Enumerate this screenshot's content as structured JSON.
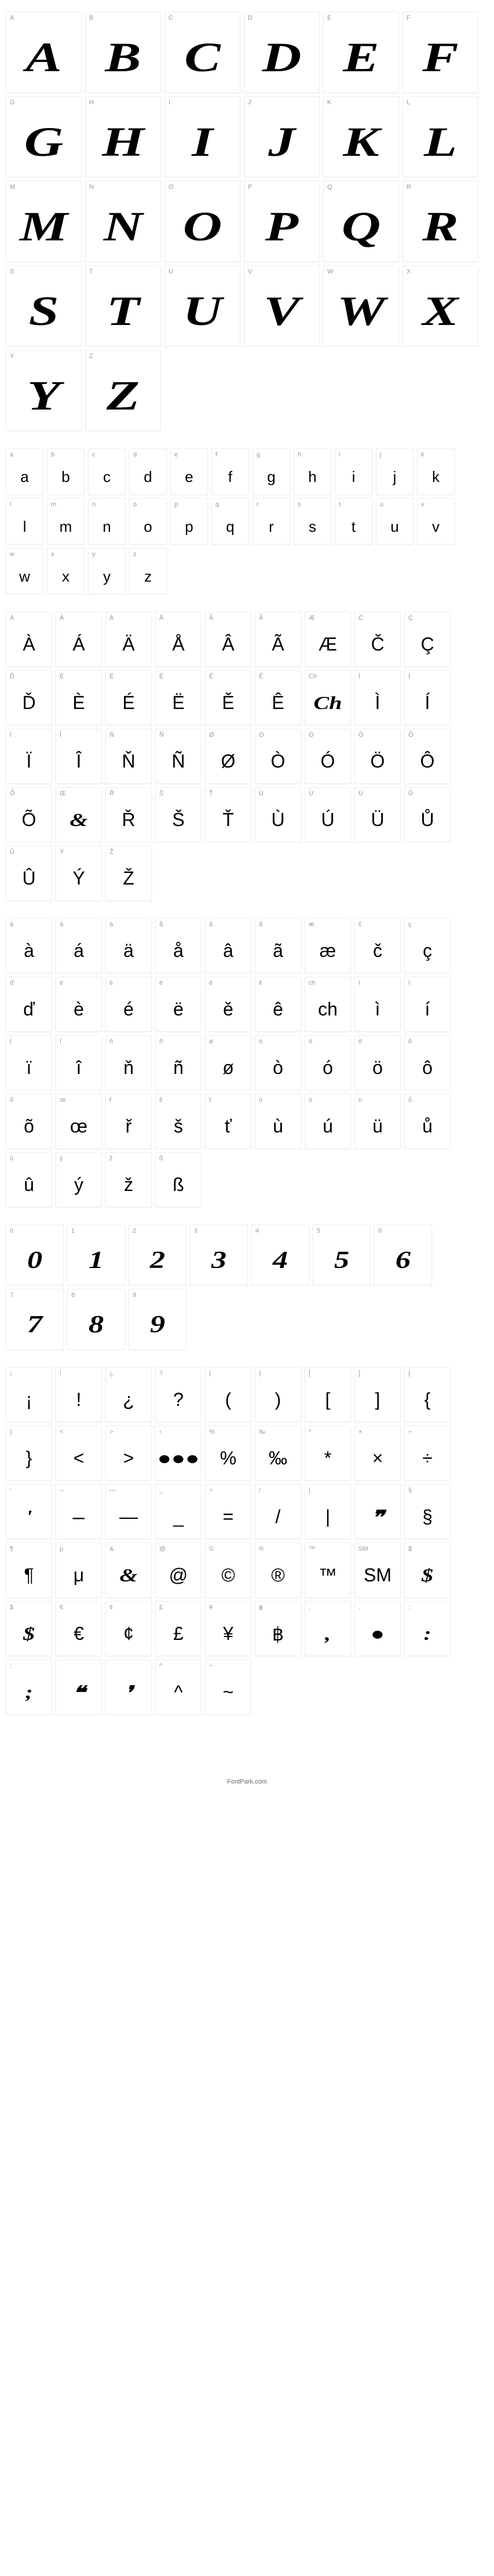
{
  "uppercase": {
    "cols": "w6",
    "cells": [
      {
        "label": "A",
        "glyph": "A"
      },
      {
        "label": "B",
        "glyph": "B"
      },
      {
        "label": "C",
        "glyph": "C"
      },
      {
        "label": "D",
        "glyph": "D"
      },
      {
        "label": "E",
        "glyph": "E"
      },
      {
        "label": "F",
        "glyph": "F"
      },
      {
        "label": "G",
        "glyph": "G"
      },
      {
        "label": "H",
        "glyph": "H"
      },
      {
        "label": "I",
        "glyph": "I"
      },
      {
        "label": "J",
        "glyph": "J"
      },
      {
        "label": "K",
        "glyph": "K"
      },
      {
        "label": "L",
        "glyph": "L"
      },
      {
        "label": "M",
        "glyph": "M"
      },
      {
        "label": "N",
        "glyph": "N"
      },
      {
        "label": "O",
        "glyph": "O"
      },
      {
        "label": "P",
        "glyph": "P"
      },
      {
        "label": "Q",
        "glyph": "Q"
      },
      {
        "label": "R",
        "glyph": "R"
      },
      {
        "label": "S",
        "glyph": "S"
      },
      {
        "label": "T",
        "glyph": "T"
      },
      {
        "label": "U",
        "glyph": "U"
      },
      {
        "label": "V",
        "glyph": "V"
      },
      {
        "label": "W",
        "glyph": "W"
      },
      {
        "label": "X",
        "glyph": "X"
      },
      {
        "label": "Y",
        "glyph": "Y"
      },
      {
        "label": "Z",
        "glyph": "Z"
      }
    ]
  },
  "lowercase": {
    "cols": "w12",
    "cells": [
      {
        "label": "a",
        "glyph": "a"
      },
      {
        "label": "b",
        "glyph": "b"
      },
      {
        "label": "c",
        "glyph": "c"
      },
      {
        "label": "d",
        "glyph": "d"
      },
      {
        "label": "e",
        "glyph": "e"
      },
      {
        "label": "f",
        "glyph": "f"
      },
      {
        "label": "g",
        "glyph": "g"
      },
      {
        "label": "h",
        "glyph": "h"
      },
      {
        "label": "i",
        "glyph": "i"
      },
      {
        "label": "j",
        "glyph": "j"
      },
      {
        "label": "k",
        "glyph": "k"
      },
      {
        "label": "l",
        "glyph": "l"
      },
      {
        "label": "m",
        "glyph": "m"
      },
      {
        "label": "n",
        "glyph": "n"
      },
      {
        "label": "o",
        "glyph": "o"
      },
      {
        "label": "p",
        "glyph": "p"
      },
      {
        "label": "q",
        "glyph": "q"
      },
      {
        "label": "r",
        "glyph": "r"
      },
      {
        "label": "s",
        "glyph": "s"
      },
      {
        "label": "t",
        "glyph": "t"
      },
      {
        "label": "u",
        "glyph": "u"
      },
      {
        "label": "v",
        "glyph": "v"
      },
      {
        "label": "w",
        "glyph": "w"
      },
      {
        "label": "x",
        "glyph": "x"
      },
      {
        "label": "y",
        "glyph": "y"
      },
      {
        "label": "z",
        "glyph": "z"
      }
    ]
  },
  "accented_upper": {
    "cols": "w10",
    "cells": [
      {
        "label": "À",
        "glyph": "À"
      },
      {
        "label": "Á",
        "glyph": "Á"
      },
      {
        "label": "Ä",
        "glyph": "Ä"
      },
      {
        "label": "Å",
        "glyph": "Å"
      },
      {
        "label": "Â",
        "glyph": "Â"
      },
      {
        "label": "Ã",
        "glyph": "Ã"
      },
      {
        "label": "Æ",
        "glyph": "Æ"
      },
      {
        "label": "Č",
        "glyph": "Č"
      },
      {
        "label": "Ç",
        "glyph": "Ç"
      },
      {
        "label": "Ď",
        "glyph": "Ď"
      },
      {
        "label": "È",
        "glyph": "È"
      },
      {
        "label": "É",
        "glyph": "É"
      },
      {
        "label": "Ë",
        "glyph": "Ë"
      },
      {
        "label": "Ě",
        "glyph": "Ě"
      },
      {
        "label": "Ê",
        "glyph": "Ê"
      },
      {
        "label": "Ch",
        "glyph": "Ch",
        "styled": true
      },
      {
        "label": "Ì",
        "glyph": "Ì"
      },
      {
        "label": "Í",
        "glyph": "Í"
      },
      {
        "label": "Ï",
        "glyph": "Ï"
      },
      {
        "label": "Î",
        "glyph": "Î"
      },
      {
        "label": "Ň",
        "glyph": "Ň"
      },
      {
        "label": "Ñ",
        "glyph": "Ñ"
      },
      {
        "label": "Ø",
        "glyph": "Ø"
      },
      {
        "label": "Ò",
        "glyph": "Ò"
      },
      {
        "label": "Ó",
        "glyph": "Ó"
      },
      {
        "label": "Ö",
        "glyph": "Ö"
      },
      {
        "label": "Ô",
        "glyph": "Ô"
      },
      {
        "label": "Õ",
        "glyph": "Õ"
      },
      {
        "label": "Œ",
        "glyph": "&",
        "styled": true
      },
      {
        "label": "Ř",
        "glyph": "Ř"
      },
      {
        "label": "Š",
        "glyph": "Š"
      },
      {
        "label": "Ť",
        "glyph": "Ť"
      },
      {
        "label": "Ù",
        "glyph": "Ù"
      },
      {
        "label": "Ú",
        "glyph": "Ú"
      },
      {
        "label": "Ü",
        "glyph": "Ü"
      },
      {
        "label": "Ů",
        "glyph": "Ů"
      },
      {
        "label": "Û",
        "glyph": "Û"
      },
      {
        "label": "Ý",
        "glyph": "Ý"
      },
      {
        "label": "Ž",
        "glyph": "Ž"
      }
    ]
  },
  "accented_lower": {
    "cols": "w10",
    "cells": [
      {
        "label": "à",
        "glyph": "à"
      },
      {
        "label": "á",
        "glyph": "á"
      },
      {
        "label": "ä",
        "glyph": "ä"
      },
      {
        "label": "å",
        "glyph": "å"
      },
      {
        "label": "â",
        "glyph": "â"
      },
      {
        "label": "ã",
        "glyph": "ã"
      },
      {
        "label": "æ",
        "glyph": "æ"
      },
      {
        "label": "č",
        "glyph": "č"
      },
      {
        "label": "ç",
        "glyph": "ç"
      },
      {
        "label": "ď",
        "glyph": "ď"
      },
      {
        "label": "è",
        "glyph": "è"
      },
      {
        "label": "é",
        "glyph": "é"
      },
      {
        "label": "ë",
        "glyph": "ë"
      },
      {
        "label": "ě",
        "glyph": "ě"
      },
      {
        "label": "ê",
        "glyph": "ê"
      },
      {
        "label": "ch",
        "glyph": "ch"
      },
      {
        "label": "ì",
        "glyph": "ì"
      },
      {
        "label": "í",
        "glyph": "í"
      },
      {
        "label": "ï",
        "glyph": "ï"
      },
      {
        "label": "î",
        "glyph": "î"
      },
      {
        "label": "ň",
        "glyph": "ň"
      },
      {
        "label": "ñ",
        "glyph": "ñ"
      },
      {
        "label": "ø",
        "glyph": "ø"
      },
      {
        "label": "ò",
        "glyph": "ò"
      },
      {
        "label": "ó",
        "glyph": "ó"
      },
      {
        "label": "ö",
        "glyph": "ö"
      },
      {
        "label": "ô",
        "glyph": "ô"
      },
      {
        "label": "õ",
        "glyph": "õ"
      },
      {
        "label": "œ",
        "glyph": "œ"
      },
      {
        "label": "ř",
        "glyph": "ř"
      },
      {
        "label": "š",
        "glyph": "š"
      },
      {
        "label": "ť",
        "glyph": "ť"
      },
      {
        "label": "ù",
        "glyph": "ù"
      },
      {
        "label": "ú",
        "glyph": "ú"
      },
      {
        "label": "ü",
        "glyph": "ü"
      },
      {
        "label": "ů",
        "glyph": "ů"
      },
      {
        "label": "û",
        "glyph": "û"
      },
      {
        "label": "ý",
        "glyph": "ý"
      },
      {
        "label": "ž",
        "glyph": "ž"
      },
      {
        "label": "ß",
        "glyph": "ß"
      }
    ]
  },
  "numbers": {
    "cols": "w8",
    "cells": [
      {
        "label": "0",
        "glyph": "0"
      },
      {
        "label": "1",
        "glyph": "1"
      },
      {
        "label": "2",
        "glyph": "2"
      },
      {
        "label": "3",
        "glyph": "3"
      },
      {
        "label": "4",
        "glyph": "4"
      },
      {
        "label": "5",
        "glyph": "5"
      },
      {
        "label": "6",
        "glyph": "6"
      },
      {
        "label": "7",
        "glyph": "7"
      },
      {
        "label": "8",
        "glyph": "8"
      },
      {
        "label": "9",
        "glyph": "9"
      }
    ],
    "styled": true
  },
  "symbols": {
    "cols": "w10",
    "cells": [
      {
        "label": "¡",
        "glyph": "¡"
      },
      {
        "label": "!",
        "glyph": "!"
      },
      {
        "label": "¿",
        "glyph": "¿"
      },
      {
        "label": "?",
        "glyph": "?"
      },
      {
        "label": "(",
        "glyph": "("
      },
      {
        "label": ")",
        "glyph": ")"
      },
      {
        "label": "[",
        "glyph": "["
      },
      {
        "label": "]",
        "glyph": "]"
      },
      {
        "label": "{",
        "glyph": "{"
      },
      {
        "label": "}",
        "glyph": "}"
      },
      {
        "label": "<",
        "glyph": "<"
      },
      {
        "label": ">",
        "glyph": ">"
      },
      {
        "label": "‹",
        "glyph": "●●●",
        "styled": true
      },
      {
        "label": "%",
        "glyph": "%"
      },
      {
        "label": "‰",
        "glyph": "‰"
      },
      {
        "label": "*",
        "glyph": "*"
      },
      {
        "label": "×",
        "glyph": "×"
      },
      {
        "label": "÷",
        "glyph": "÷"
      },
      {
        "label": "'",
        "glyph": "'",
        "styled": true
      },
      {
        "label": "–",
        "glyph": "–",
        "styled": true
      },
      {
        "label": "—",
        "glyph": "—"
      },
      {
        "label": "_",
        "glyph": "_"
      },
      {
        "label": "=",
        "glyph": "="
      },
      {
        "label": "/",
        "glyph": "/"
      },
      {
        "label": "|",
        "glyph": "|"
      },
      {
        "label": "",
        "glyph": "❞",
        "styled": true
      },
      {
        "label": "§",
        "glyph": "§"
      },
      {
        "label": "¶",
        "glyph": "¶"
      },
      {
        "label": "μ",
        "glyph": "μ"
      },
      {
        "label": "&",
        "glyph": "&",
        "styled": true
      },
      {
        "label": "@",
        "glyph": "@"
      },
      {
        "label": "©",
        "glyph": "©"
      },
      {
        "label": "®",
        "glyph": "®"
      },
      {
        "label": "™",
        "glyph": "™"
      },
      {
        "label": "SM",
        "glyph": "SM"
      },
      {
        "label": "$",
        "glyph": "$",
        "styled": true
      },
      {
        "label": "$",
        "glyph": "$",
        "styled": true
      },
      {
        "label": "€",
        "glyph": "€"
      },
      {
        "label": "¢",
        "glyph": "¢"
      },
      {
        "label": "£",
        "glyph": "£"
      },
      {
        "label": "¥",
        "glyph": "¥"
      },
      {
        "label": "฿",
        "glyph": "฿"
      },
      {
        "label": ",",
        "glyph": ",",
        "styled": true
      },
      {
        "label": ".",
        "glyph": "●",
        "styled": true
      },
      {
        "label": ":",
        "glyph": ":",
        "styled": true
      },
      {
        "label": ";",
        "glyph": ";",
        "styled": true
      },
      {
        "label": "",
        "glyph": "❝",
        "styled": true
      },
      {
        "label": "",
        "glyph": "❜",
        "styled": true
      },
      {
        "label": "^",
        "glyph": "^"
      },
      {
        "label": "~",
        "glyph": "~"
      }
    ]
  },
  "footer": "FontPark.com"
}
